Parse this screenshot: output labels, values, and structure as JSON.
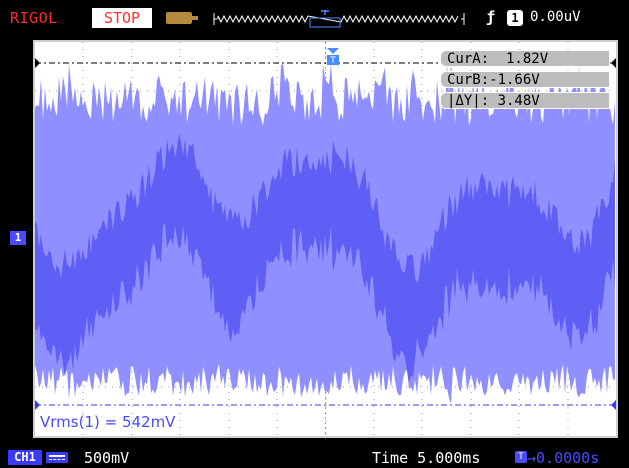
{
  "header": {
    "brand": "RIGOL",
    "run_state": "STOP",
    "trigger_slope": "ƒ",
    "trigger_source": "1",
    "trigger_level": "0.00uV"
  },
  "cursors": {
    "cur_a": "CurA:  1.82V",
    "cur_b": "CurB:-1.66V",
    "delta_y": "|ΔY|: 3.48V"
  },
  "channel_marker": "1",
  "measurement": "Vrms(1) = 542mV",
  "footer": {
    "channel_label": "CH1",
    "channel_scale": "500mV",
    "timebase": "Time 5.000ms",
    "trigger_icon": "T",
    "trigger_position": "→0.0000s"
  },
  "icons": [
    "memory-depth-icon",
    "waveform-overview-icon",
    "trigger-marker-icon",
    "ac-coupling-icon"
  ],
  "colors": {
    "brand": "#ff2a2a",
    "channel": "#4a4aff",
    "trace_fill": "#8f8fff",
    "grid_background": "#ffffff",
    "cursor_box": "#bdbdbd"
  }
}
